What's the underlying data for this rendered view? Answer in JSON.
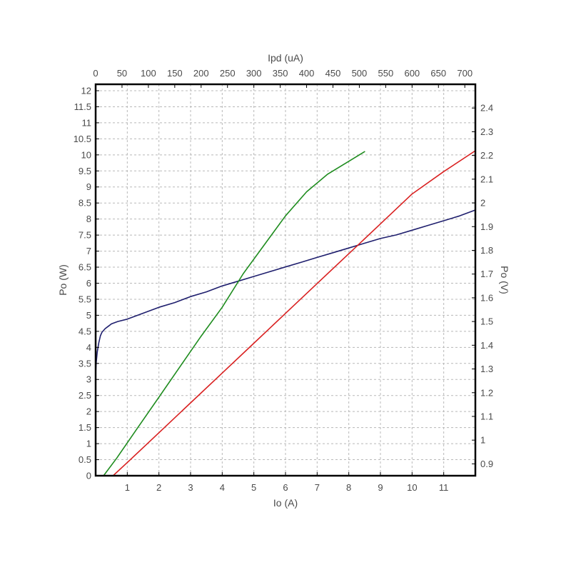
{
  "chart_data": {
    "type": "line",
    "xlabel": "Io (A)",
    "x2label": "Ipd (uA)",
    "ylabel": "Po (W)",
    "y2label": "Po (V)",
    "xlim": [
      0,
      12
    ],
    "x2lim": [
      0,
      720
    ],
    "ylim": [
      0,
      12.2
    ],
    "y2lim": [
      0.85,
      2.5
    ],
    "xticks": [
      1,
      2,
      3,
      4,
      5,
      6,
      7,
      8,
      9,
      10,
      11
    ],
    "x2ticks": [
      0,
      50,
      100,
      150,
      200,
      250,
      300,
      350,
      400,
      450,
      500,
      550,
      600,
      650,
      700
    ],
    "yticks": [
      0,
      0.5,
      1,
      1.5,
      2,
      2.5,
      3,
      3.5,
      4,
      4.5,
      5,
      5.5,
      6,
      6.5,
      7,
      7.5,
      8,
      8.5,
      9,
      9.5,
      10,
      10.5,
      11,
      11.5,
      12
    ],
    "y2ticks": [
      0.9,
      1,
      1.1,
      1.2,
      1.3,
      1.4,
      1.5,
      1.6,
      1.7,
      1.8,
      1.9,
      2,
      2.1,
      2.2,
      2.3,
      2.4
    ],
    "grid": true,
    "colors": {
      "frame": "#000000",
      "grid": "#b8b8b8",
      "text": "#4a4a4a"
    },
    "series": [
      {
        "color": "#1f1f6e",
        "axes": "x-bottom/y-right",
        "x": [
          0,
          0.02,
          0.05,
          0.1,
          0.15,
          0.2,
          0.3,
          0.4,
          0.5,
          0.7,
          1.0,
          1.5,
          2.0,
          2.5,
          3.0,
          3.5,
          4.0,
          4.5,
          5.0,
          5.5,
          6.0,
          6.5,
          7.0,
          7.5,
          8.0,
          8.5,
          9.0,
          9.5,
          10.0,
          10.5,
          11.0,
          11.5,
          12.0
        ],
        "y": [
          1.28,
          1.33,
          1.37,
          1.41,
          1.44,
          1.455,
          1.47,
          1.48,
          1.49,
          1.5,
          1.51,
          1.535,
          1.56,
          1.58,
          1.605,
          1.625,
          1.65,
          1.67,
          1.69,
          1.71,
          1.73,
          1.75,
          1.77,
          1.79,
          1.81,
          1.83,
          1.85,
          1.865,
          1.885,
          1.905,
          1.925,
          1.945,
          1.97
        ]
      },
      {
        "color": "#d92020",
        "axes": "x-bottom/y-left",
        "x": [
          0.55,
          1,
          2,
          3,
          4,
          5,
          6,
          7,
          8,
          9,
          10,
          11,
          12
        ],
        "y": [
          0,
          0.41,
          1.34,
          2.27,
          3.2,
          4.13,
          5.06,
          5.99,
          6.92,
          7.85,
          8.78,
          9.48,
          10.13
        ]
      },
      {
        "color": "#1e8c1e",
        "axes": "x-top/y-left",
        "x": [
          15,
          40,
          80,
          120,
          160,
          200,
          240,
          280,
          320,
          360,
          400,
          440,
          480,
          510
        ],
        "y": [
          0,
          0.55,
          1.5,
          2.45,
          3.4,
          4.35,
          5.25,
          6.3,
          7.2,
          8.1,
          8.85,
          9.4,
          9.8,
          10.1
        ]
      }
    ]
  }
}
